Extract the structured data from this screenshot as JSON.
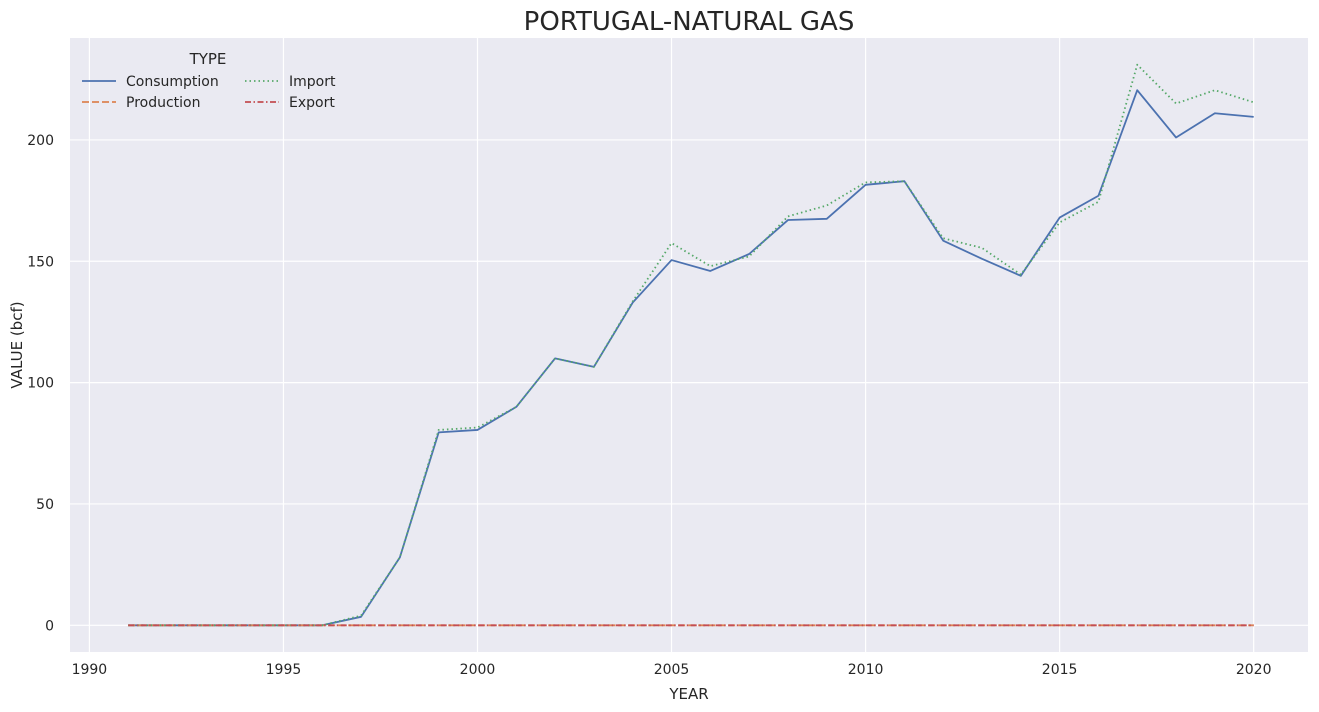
{
  "chart_data": {
    "type": "line",
    "title": "PORTUGAL-NATURAL GAS",
    "xlabel": "YEAR",
    "ylabel": "VALUE (bcf)",
    "xlim": [
      1989.5,
      2021.4
    ],
    "ylim": [
      -11,
      242
    ],
    "xticks": [
      1990,
      1995,
      2000,
      2005,
      2010,
      2015,
      2020
    ],
    "yticks": [
      0,
      50,
      100,
      150,
      200
    ],
    "grid": true,
    "legend": {
      "title": "TYPE",
      "placement": "top-left",
      "columns": 2
    },
    "x": [
      1991,
      1992,
      1993,
      1994,
      1995,
      1996,
      1997,
      1998,
      1999,
      2000,
      2001,
      2002,
      2003,
      2004,
      2005,
      2006,
      2007,
      2008,
      2009,
      2010,
      2011,
      2012,
      2013,
      2014,
      2015,
      2016,
      2017,
      2018,
      2019,
      2020
    ],
    "series": [
      {
        "name": "Consumption",
        "color": "#4c72b0",
        "dash": "solid",
        "values": [
          0,
          0,
          0,
          0,
          0,
          0,
          3.5,
          28,
          79.5,
          80.5,
          90,
          110,
          106.5,
          133,
          150.5,
          146,
          153,
          167,
          167.5,
          181.5,
          183,
          158.5,
          151,
          144,
          168,
          177,
          220.5,
          201,
          211,
          209.5
        ]
      },
      {
        "name": "Production",
        "color": "#dd8452",
        "dash": "dashed",
        "values": [
          0,
          0,
          0,
          0,
          0,
          0,
          0,
          0,
          0,
          0,
          0,
          0,
          0,
          0,
          0,
          0,
          0,
          0,
          0,
          0,
          0,
          0,
          0,
          0,
          0,
          0,
          0,
          0,
          0,
          0
        ]
      },
      {
        "name": "Import",
        "color": "#55a868",
        "dash": "dotted",
        "values": [
          0,
          0,
          0,
          0,
          0,
          0,
          4,
          28,
          80.5,
          81.5,
          90,
          110,
          106.5,
          133.5,
          157.5,
          148,
          152,
          168.5,
          173,
          182.5,
          183,
          159.5,
          155.5,
          144.5,
          166,
          174.5,
          231,
          215,
          220.5,
          215.5
        ]
      },
      {
        "name": "Export",
        "color": "#c44e52",
        "dash": "dashdot",
        "values": [
          0,
          0,
          0,
          0,
          0,
          0,
          0,
          0,
          0,
          0,
          0,
          0,
          0,
          0,
          0,
          0,
          0,
          0,
          0,
          0,
          0,
          0,
          0,
          0,
          0,
          0,
          0,
          0,
          0,
          0
        ]
      }
    ]
  }
}
